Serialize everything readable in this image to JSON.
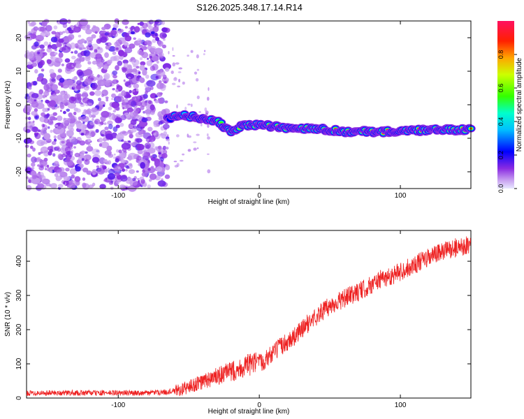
{
  "title": "S126.2025.348.17.14.R14",
  "chart_data": [
    {
      "type": "heatmap",
      "title": "S126.2025.348.17.14.R14",
      "xlabel": "Height of straight line (km)",
      "ylabel": "Frequency (Hz)",
      "xlim": [
        -165,
        150
      ],
      "ylim": [
        -25,
        25
      ],
      "x_ticks": [
        -100,
        0,
        100
      ],
      "y_ticks": [
        -20,
        -10,
        0,
        10,
        20
      ],
      "colorbar": {
        "label": "Normalized spectral amplitude",
        "range": [
          0,
          1
        ],
        "ticks": [
          "0.0",
          "0.2",
          "0.4",
          "0.6",
          "0.8"
        ],
        "tick_values": [
          0.0,
          0.2,
          0.4,
          0.6,
          0.8
        ]
      },
      "ridge": {
        "description_points_x": [
          -65,
          -55,
          -40,
          -30,
          -20,
          -10,
          0,
          20,
          40,
          60,
          80,
          100,
          120,
          150
        ],
        "frequency_hz": [
          -4,
          -3,
          -4,
          -5,
          -8,
          -6,
          -6,
          -7,
          -7,
          -8,
          -8,
          -8,
          -7.5,
          -7.5
        ],
        "peak_amplitude": [
          0.3,
          0.4,
          0.35,
          0.55,
          0.6,
          0.75,
          0.8,
          0.85,
          0.88,
          0.9,
          0.95,
          0.95,
          0.9,
          0.85
        ]
      },
      "noise_region_x": [
        -165,
        -65
      ]
    },
    {
      "type": "line",
      "xlabel": "Height of straight line (km)",
      "ylabel": "SNR (10 * v/v)",
      "xlim": [
        -165,
        150
      ],
      "ylim": [
        0,
        490
      ],
      "x_ticks": [
        -100,
        0,
        100
      ],
      "y_ticks": [
        0,
        100,
        200,
        300,
        400
      ],
      "series": [
        {
          "name": "SNR",
          "color": "#ee2222",
          "x": [
            -165,
            -120,
            -80,
            -65,
            -55,
            -45,
            -35,
            -25,
            -15,
            -5,
            0,
            5,
            15,
            25,
            35,
            45,
            55,
            65,
            75,
            85,
            95,
            105,
            115,
            125,
            135,
            150
          ],
          "y": [
            15,
            15,
            15,
            18,
            25,
            40,
            55,
            70,
            85,
            100,
            100,
            115,
            150,
            180,
            220,
            255,
            280,
            300,
            320,
            345,
            360,
            380,
            400,
            420,
            435,
            450
          ]
        }
      ]
    }
  ]
}
